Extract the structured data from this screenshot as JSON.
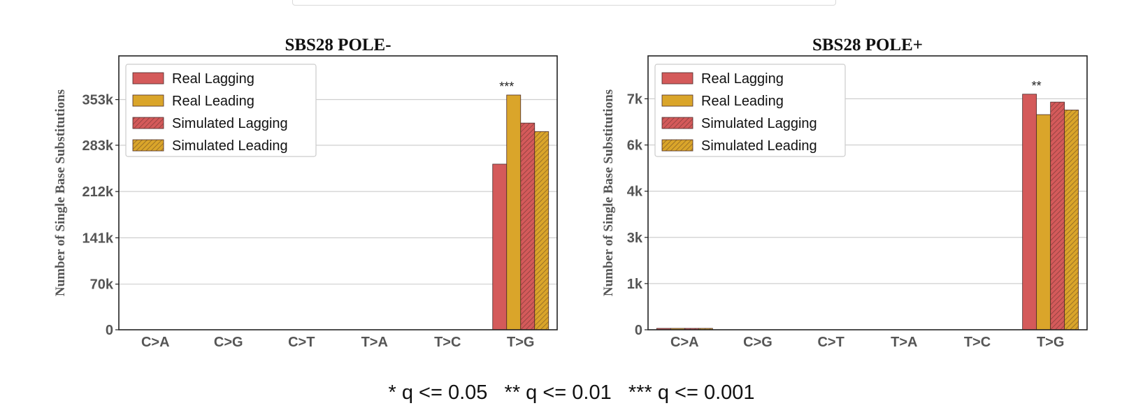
{
  "footnote": "* q <= 0.05   ** q <= 0.01   *** q <= 0.001",
  "colors": {
    "real_lagging": "#d45a5a",
    "real_leading": "#daa52a",
    "grid": "#cfcfcf",
    "axis": "#222222"
  },
  "chart_data": [
    {
      "type": "bar",
      "title": "SBS28 POLE-",
      "xlabel": "",
      "ylabel": "Number of Single Base Substitutions",
      "categories": [
        "C>A",
        "C>G",
        "C>T",
        "T>A",
        "T>C",
        "T>G"
      ],
      "ylim": [
        0,
        420000
      ],
      "yticks": [
        0,
        70000,
        141000,
        212000,
        283000,
        353000
      ],
      "ytick_labels": [
        "0",
        "70k",
        "141k",
        "212k",
        "283k",
        "353k"
      ],
      "grid": true,
      "legend_position": "top-left",
      "series": [
        {
          "name": "Real Lagging",
          "hatched": false,
          "values": [
            0,
            0,
            0,
            0,
            0,
            254000
          ]
        },
        {
          "name": "Real Leading",
          "hatched": false,
          "values": [
            0,
            0,
            0,
            0,
            0,
            360000
          ]
        },
        {
          "name": "Simulated Lagging",
          "hatched": true,
          "values": [
            0,
            0,
            0,
            0,
            0,
            317000
          ]
        },
        {
          "name": "Simulated Leading",
          "hatched": true,
          "values": [
            0,
            0,
            0,
            0,
            0,
            304000
          ]
        }
      ],
      "annotations": [
        {
          "category": "T>G",
          "text": "***"
        }
      ]
    },
    {
      "type": "bar",
      "title": "SBS28 POLE+",
      "xlabel": "",
      "ylabel": "Number of Single Base Substitutions",
      "categories": [
        "C>A",
        "C>G",
        "C>T",
        "T>A",
        "T>C",
        "T>G"
      ],
      "ylim": [
        0,
        8300
      ],
      "yticks": [
        0,
        1400,
        2800,
        4200,
        5600,
        7000
      ],
      "ytick_labels": [
        "0",
        "1k",
        "3k",
        "4k",
        "6k",
        "7k"
      ],
      "grid": true,
      "legend_position": "top-left",
      "series": [
        {
          "name": "Real Lagging",
          "hatched": false,
          "values": [
            30,
            0,
            0,
            0,
            0,
            7140
          ]
        },
        {
          "name": "Real Leading",
          "hatched": false,
          "values": [
            30,
            0,
            0,
            0,
            0,
            6520
          ]
        },
        {
          "name": "Simulated Lagging",
          "hatched": true,
          "values": [
            30,
            0,
            0,
            0,
            0,
            6900
          ]
        },
        {
          "name": "Simulated Leading",
          "hatched": true,
          "values": [
            30,
            0,
            0,
            0,
            0,
            6660
          ]
        }
      ],
      "annotations": [
        {
          "category": "T>G",
          "text": "**"
        }
      ]
    }
  ]
}
